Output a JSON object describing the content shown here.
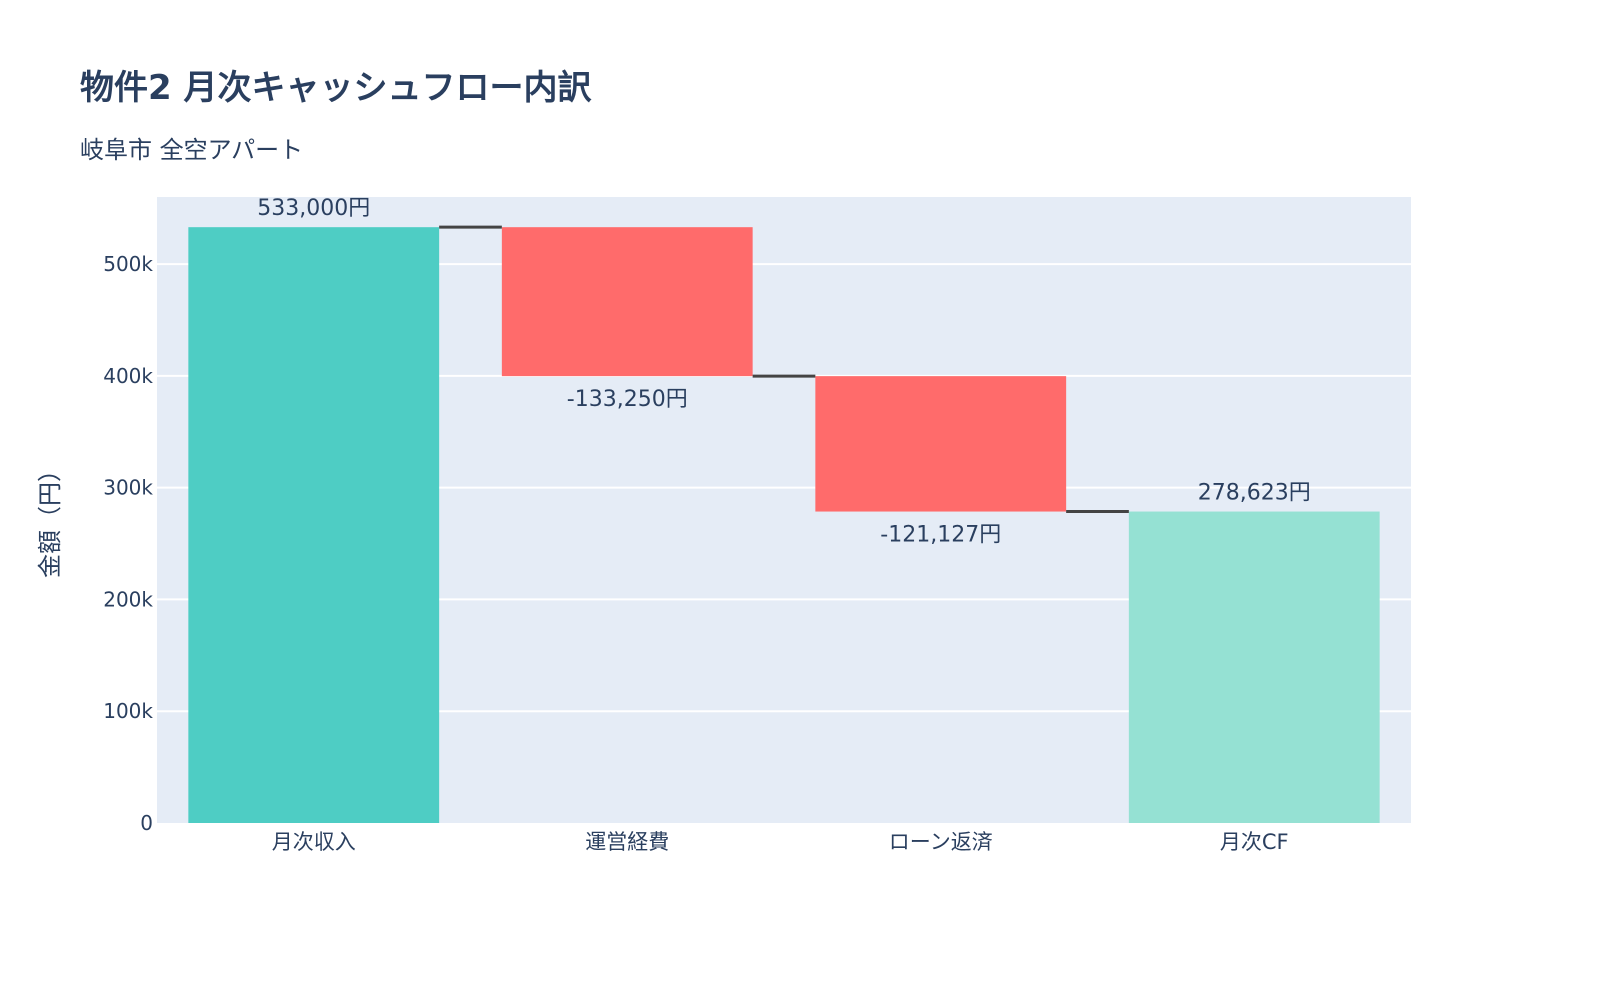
{
  "chart_data": {
    "type": "waterfall",
    "title": "物件2 月次キャッシュフロー内訳",
    "subtitle": "岐阜市 全空アパート",
    "xlabel": "",
    "ylabel": "金額（円）",
    "ylim": [
      0,
      560000
    ],
    "yticks": [
      0,
      100000,
      200000,
      300000,
      400000,
      500000
    ],
    "ytick_labels": [
      "0",
      "100k",
      "200k",
      "300k",
      "400k",
      "500k"
    ],
    "grid": true,
    "categories": [
      "月次収入",
      "運営経費",
      "ローン返済",
      "月次CF"
    ],
    "measures": [
      "absolute",
      "relative",
      "relative",
      "total"
    ],
    "values": [
      533000,
      -133250,
      -121127,
      278623
    ],
    "data_labels": [
      "533,000円",
      "-133,250円",
      "-121,127円",
      "278,623円"
    ],
    "colors": {
      "increasing": "#4ECDC4",
      "decreasing": "#FF6B6B",
      "total": "#95E1D3",
      "connector": "#444444",
      "plot_bg": "#E5ECF6"
    }
  }
}
